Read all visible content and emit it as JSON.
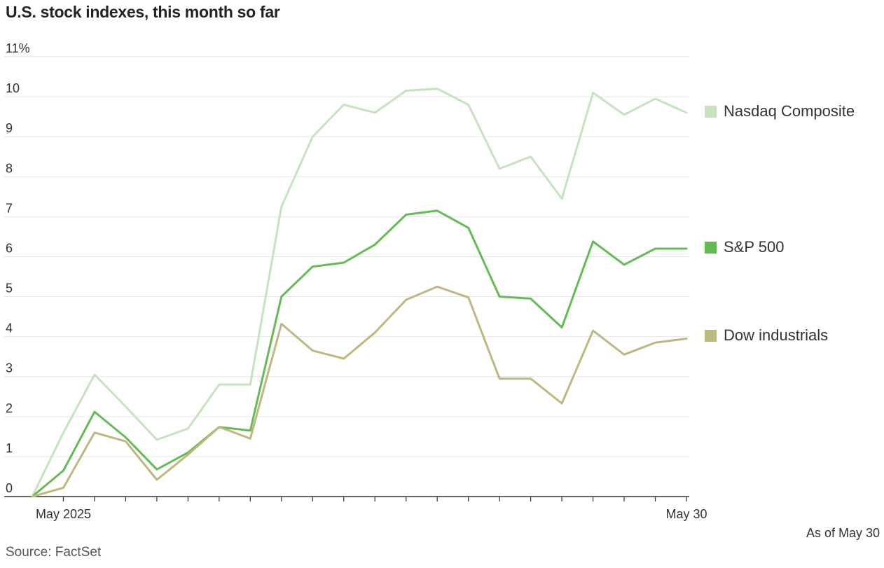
{
  "title": "U.S. stock indexes, this month so far",
  "source": "Source: FactSet",
  "as_of": "As of May 30",
  "chart_data": {
    "type": "line",
    "title": "U.S. stock indexes, this month so far",
    "y_unit": "%",
    "ylim": [
      0,
      11
    ],
    "yticks": [
      0,
      1,
      2,
      3,
      4,
      5,
      6,
      7,
      8,
      9,
      10,
      11
    ],
    "ytick_labels": [
      "0",
      "1",
      "2",
      "3",
      "4",
      "5",
      "6",
      "7",
      "8",
      "9",
      "10",
      "11%"
    ],
    "xtick_labels": [
      "May 2025",
      "May 30"
    ],
    "x": [
      "Apr 30",
      "May 1",
      "May 2",
      "May 5",
      "May 6",
      "May 7",
      "May 8",
      "May 9",
      "May 12",
      "May 13",
      "May 14",
      "May 15",
      "May 16",
      "May 19",
      "May 20",
      "May 21",
      "May 22",
      "May 23",
      "May 27",
      "May 28",
      "May 29",
      "May 30"
    ],
    "grid": true,
    "legend_position": "right, at line ends",
    "series": [
      {
        "name": "Nasdaq Composite",
        "color": "#c6e2bf",
        "values": [
          0,
          1.6,
          3.05,
          2.25,
          1.42,
          1.7,
          2.8,
          2.8,
          7.25,
          9.0,
          9.8,
          9.6,
          10.15,
          10.2,
          9.8,
          8.2,
          8.5,
          7.45,
          10.1,
          9.55,
          9.95,
          9.6
        ]
      },
      {
        "name": "S&P 500",
        "color": "#64bb54",
        "values": [
          0,
          0.65,
          2.12,
          1.48,
          0.68,
          1.1,
          1.74,
          1.65,
          5.0,
          5.75,
          5.85,
          6.3,
          7.05,
          7.15,
          6.72,
          5.0,
          4.95,
          4.23,
          6.38,
          5.8,
          6.2,
          6.2
        ]
      },
      {
        "name": "Dow industrials",
        "color": "#bdb97e",
        "values": [
          0,
          0.22,
          1.6,
          1.38,
          0.42,
          1.05,
          1.74,
          1.45,
          4.32,
          3.65,
          3.45,
          4.1,
          4.92,
          5.25,
          4.98,
          2.95,
          2.95,
          2.33,
          4.15,
          3.55,
          3.85,
          3.95
        ]
      }
    ]
  }
}
